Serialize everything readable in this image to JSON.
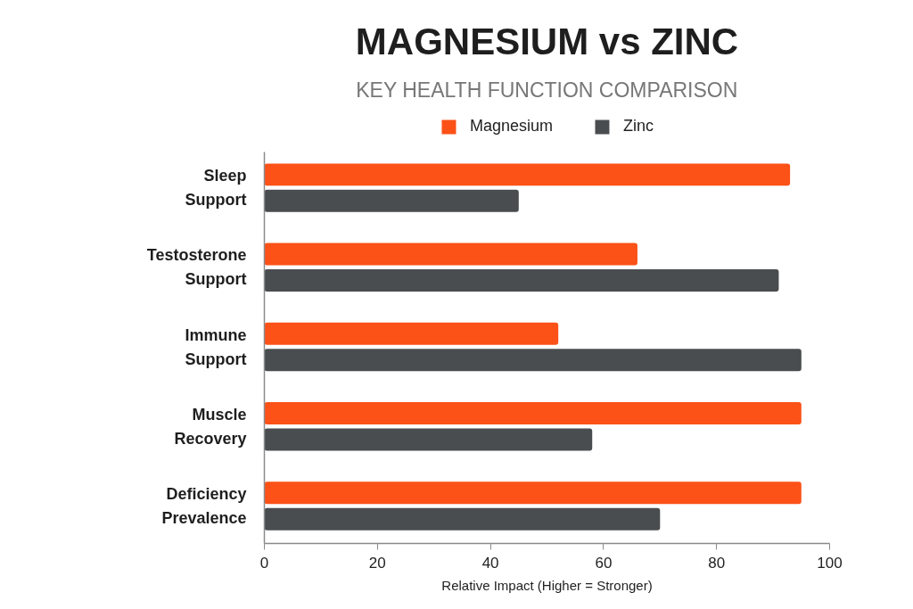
{
  "chart_data": {
    "type": "bar",
    "orientation": "horizontal",
    "title": "MAGNESIUM vs ZINC",
    "subtitle": "KEY HEALTH FUNCTION COMPARISON",
    "xlabel": "Relative Impact (Higher = Stronger)",
    "categories": [
      "Sleep Support",
      "Testosterone Support",
      "Immune Support",
      "Muscle Recovery",
      "Deficiency Prevalence"
    ],
    "series": [
      {
        "name": "Magnesium",
        "color": "#fc5117",
        "values": [
          93,
          66,
          52,
          95,
          95
        ]
      },
      {
        "name": "Zinc",
        "color": "#4a4d4f",
        "values": [
          45,
          91,
          95,
          58,
          70
        ]
      }
    ],
    "xlim": [
      0,
      100
    ],
    "xticks": [
      0,
      20,
      40,
      60,
      80,
      100
    ],
    "legend": "top",
    "grid": false
  }
}
